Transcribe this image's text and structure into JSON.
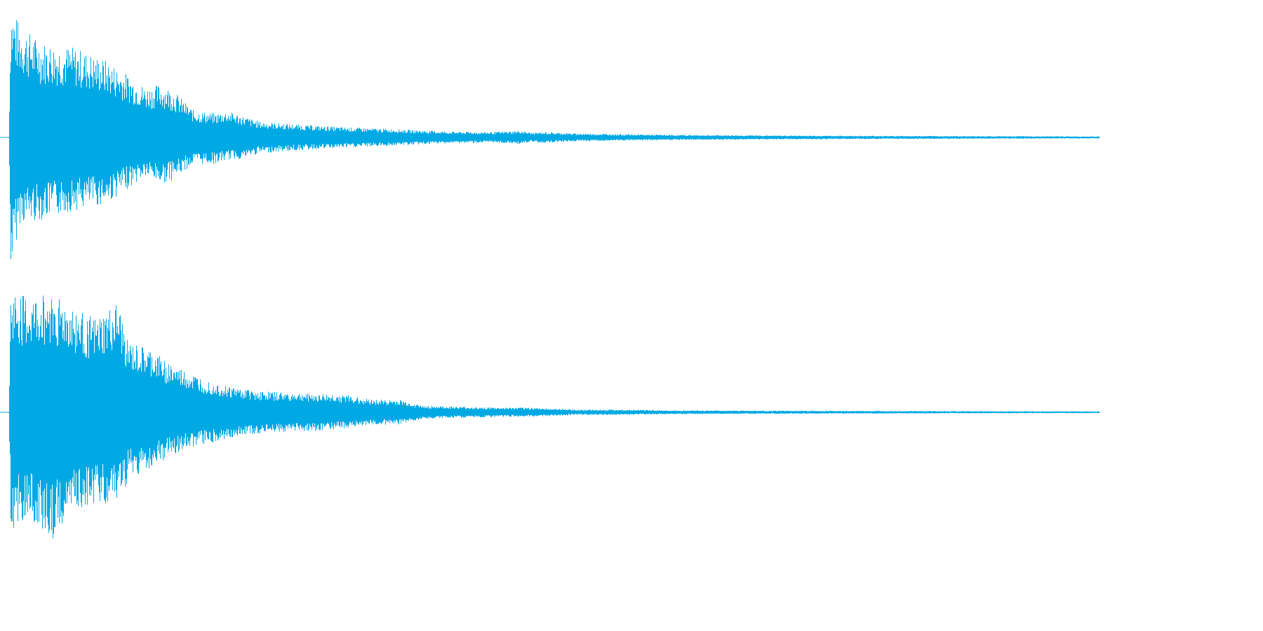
{
  "chart_data": {
    "type": "area",
    "title": "",
    "xlabel": "",
    "ylabel": "",
    "ylim": [
      -1,
      1
    ],
    "grid": false,
    "legend": "none",
    "color": "#00a9e4",
    "series": [
      {
        "channel": 1,
        "envelope": {
          "t": [
            0.0,
            0.002,
            0.01,
            0.03,
            0.06,
            0.09,
            0.11,
            0.125,
            0.14,
            0.15,
            0.17,
            0.19,
            0.2,
            0.215,
            0.23,
            0.26,
            0.3,
            0.36,
            0.4,
            0.44,
            0.47,
            0.48,
            0.49,
            0.52,
            0.6,
            0.7,
            0.8,
            0.9,
            1.0
          ],
          "max": [
            0.0,
            1.0,
            0.85,
            0.72,
            0.68,
            0.58,
            0.47,
            0.38,
            0.4,
            0.36,
            0.2,
            0.18,
            0.2,
            0.16,
            0.12,
            0.1,
            0.08,
            0.06,
            0.045,
            0.04,
            0.05,
            0.035,
            0.04,
            0.03,
            0.02,
            0.015,
            0.012,
            0.01,
            0.008
          ],
          "min": [
            0.0,
            -1.0,
            -0.65,
            -0.62,
            -0.55,
            -0.5,
            -0.38,
            -0.3,
            -0.35,
            -0.32,
            -0.2,
            -0.2,
            -0.17,
            -0.16,
            -0.12,
            -0.1,
            -0.08,
            -0.06,
            -0.045,
            -0.04,
            -0.05,
            -0.035,
            -0.04,
            -0.03,
            -0.02,
            -0.015,
            -0.012,
            -0.01,
            -0.008
          ]
        }
      },
      {
        "channel": 2,
        "envelope": {
          "t": [
            0.0,
            0.002,
            0.02,
            0.04,
            0.06,
            0.08,
            0.1,
            0.11,
            0.13,
            0.15,
            0.17,
            0.2,
            0.23,
            0.25,
            0.28,
            0.31,
            0.33,
            0.36,
            0.38,
            0.42,
            0.45,
            0.48,
            0.52,
            0.56,
            0.6,
            0.7,
            0.8,
            0.9,
            1.0
          ],
          "max": [
            0.0,
            0.92,
            0.85,
            0.92,
            0.78,
            0.7,
            0.82,
            0.52,
            0.47,
            0.36,
            0.28,
            0.2,
            0.16,
            0.15,
            0.14,
            0.13,
            0.1,
            0.09,
            0.05,
            0.04,
            0.035,
            0.035,
            0.02,
            0.02,
            0.015,
            0.012,
            0.01,
            0.008,
            0.007
          ],
          "min": [
            0.0,
            -0.88,
            -0.8,
            -0.95,
            -0.78,
            -0.68,
            -0.72,
            -0.5,
            -0.42,
            -0.32,
            -0.26,
            -0.2,
            -0.16,
            -0.15,
            -0.14,
            -0.12,
            -0.1,
            -0.09,
            -0.05,
            -0.04,
            -0.035,
            -0.035,
            -0.02,
            -0.02,
            -0.015,
            -0.012,
            -0.01,
            -0.008,
            -0.007
          ]
        }
      }
    ]
  }
}
